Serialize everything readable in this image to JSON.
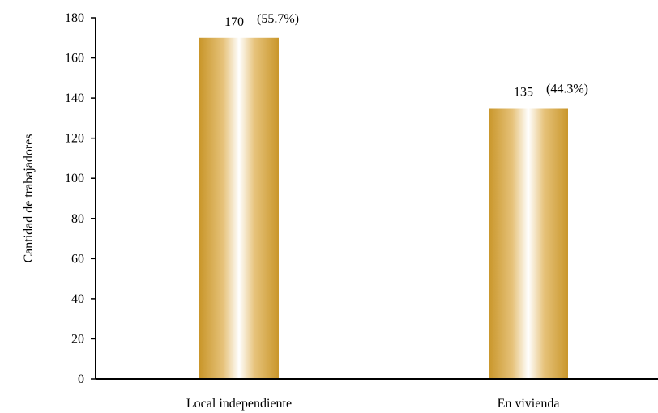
{
  "chart_data": {
    "type": "bar",
    "categories": [
      "Local independiente",
      "En vivienda"
    ],
    "values": [
      170,
      135
    ],
    "percent_labels": [
      "(55.7%)",
      "(44.3%)"
    ],
    "value_labels": [
      "170",
      "135"
    ],
    "title": "",
    "xlabel": "",
    "ylabel": "Cantidad de trabajadores",
    "ylim": [
      0,
      180
    ],
    "yticks": [
      0,
      20,
      40,
      60,
      80,
      100,
      120,
      140,
      160,
      180
    ],
    "grid": false,
    "legend": "none",
    "bar_color": "#d4a437",
    "bar_highlight": "#ffffff"
  }
}
